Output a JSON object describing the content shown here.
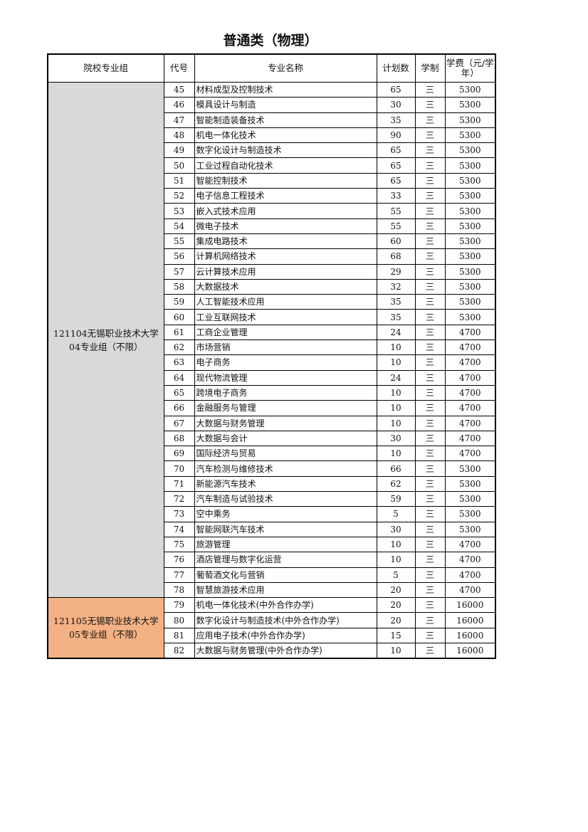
{
  "title": "普通类（物理）",
  "headers": {
    "group": "院校专业组",
    "code": "代号",
    "name": "专业名称",
    "plan": "计划数",
    "years": "学制",
    "fee": "学费（元/学年）"
  },
  "colors": {
    "group1_bg": "#d9d9d9",
    "group2_bg": "#f4b183"
  },
  "groups": [
    {
      "label_line1": "121104无锡职业技术大学",
      "label_line2": "04专业组（不限）",
      "rows": [
        [
          "45",
          "材料成型及控制技术",
          "65",
          "三",
          "5300"
        ],
        [
          "46",
          "模具设计与制造",
          "30",
          "三",
          "5300"
        ],
        [
          "47",
          "智能制造装备技术",
          "35",
          "三",
          "5300"
        ],
        [
          "48",
          "机电一体化技术",
          "90",
          "三",
          "5300"
        ],
        [
          "49",
          "数字化设计与制造技术",
          "65",
          "三",
          "5300"
        ],
        [
          "50",
          "工业过程自动化技术",
          "65",
          "三",
          "5300"
        ],
        [
          "51",
          "智能控制技术",
          "65",
          "三",
          "5300"
        ],
        [
          "52",
          "电子信息工程技术",
          "33",
          "三",
          "5300"
        ],
        [
          "53",
          "嵌入式技术应用",
          "55",
          "三",
          "5300"
        ],
        [
          "54",
          "微电子技术",
          "55",
          "三",
          "5300"
        ],
        [
          "55",
          "集成电路技术",
          "60",
          "三",
          "5300"
        ],
        [
          "56",
          "计算机网络技术",
          "68",
          "三",
          "5300"
        ],
        [
          "57",
          "云计算技术应用",
          "29",
          "三",
          "5300"
        ],
        [
          "58",
          "大数据技术",
          "32",
          "三",
          "5300"
        ],
        [
          "59",
          "人工智能技术应用",
          "35",
          "三",
          "5300"
        ],
        [
          "60",
          "工业互联网技术",
          "35",
          "三",
          "5300"
        ],
        [
          "61",
          "工商企业管理",
          "24",
          "三",
          "4700"
        ],
        [
          "62",
          "市场营销",
          "10",
          "三",
          "4700"
        ],
        [
          "63",
          "电子商务",
          "10",
          "三",
          "4700"
        ],
        [
          "64",
          "现代物流管理",
          "24",
          "三",
          "4700"
        ],
        [
          "65",
          "跨境电子商务",
          "10",
          "三",
          "4700"
        ],
        [
          "66",
          "金融服务与管理",
          "10",
          "三",
          "4700"
        ],
        [
          "67",
          "大数据与财务管理",
          "10",
          "三",
          "4700"
        ],
        [
          "68",
          "大数据与会计",
          "30",
          "三",
          "4700"
        ],
        [
          "69",
          "国际经济与贸易",
          "10",
          "三",
          "4700"
        ],
        [
          "70",
          "汽车检测与维修技术",
          "66",
          "三",
          "5300"
        ],
        [
          "71",
          "新能源汽车技术",
          "62",
          "三",
          "5300"
        ],
        [
          "72",
          "汽车制造与试验技术",
          "59",
          "三",
          "5300"
        ],
        [
          "73",
          "空中乘务",
          "5",
          "三",
          "5300"
        ],
        [
          "74",
          "智能网联汽车技术",
          "30",
          "三",
          "5300"
        ],
        [
          "75",
          "旅游管理",
          "10",
          "三",
          "4700"
        ],
        [
          "76",
          "酒店管理与数字化运营",
          "10",
          "三",
          "4700"
        ],
        [
          "77",
          "葡萄酒文化与营销",
          "5",
          "三",
          "4700"
        ],
        [
          "78",
          "智慧旅游技术应用",
          "20",
          "三",
          "4700"
        ]
      ]
    },
    {
      "label_line1": "121105无锡职业技术大学",
      "label_line2": "05专业组（不限）",
      "rows": [
        [
          "79",
          "机电一体化技术(中外合作办学)",
          "20",
          "三",
          "16000"
        ],
        [
          "80",
          "数字化设计与制造技术(中外合作办学)",
          "20",
          "三",
          "16000"
        ],
        [
          "81",
          "应用电子技术(中外合作办学)",
          "15",
          "三",
          "16000"
        ],
        [
          "82",
          "大数据与财务管理(中外合作办学)",
          "10",
          "三",
          "16000"
        ]
      ]
    }
  ]
}
